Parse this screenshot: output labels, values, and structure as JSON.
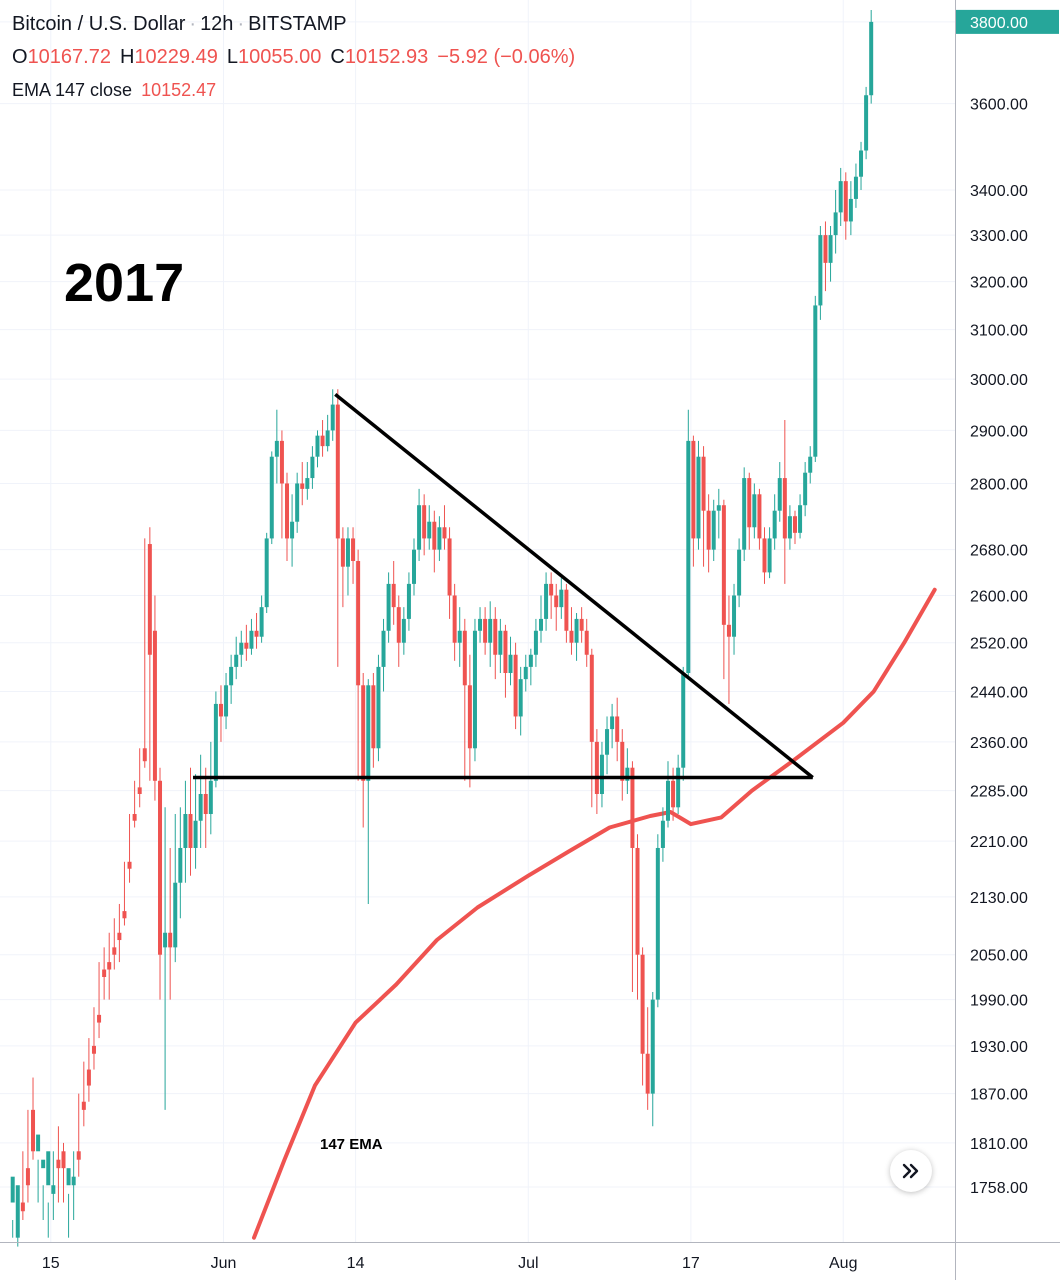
{
  "legend": {
    "symbol": "Bitcoin / U.S. Dollar",
    "interval": "12h",
    "exchange": "BITSTAMP",
    "o_label": "O",
    "o_value": "10167.72",
    "h_label": "H",
    "h_value": "10229.49",
    "l_label": "L",
    "l_value": "10055.00",
    "c_label": "C",
    "c_value": "10152.93",
    "change": "−5.92 (−0.06%)",
    "ema_label": "EMA 147 close",
    "ema_value": "10152.47"
  },
  "annotations": {
    "year": "2017",
    "ema_tag": "147 EMA"
  },
  "colors": {
    "up": "#26a69a",
    "down": "#ef5350",
    "ema": "#ef5350",
    "grid": "#f0f3fa",
    "trendline": "#000000",
    "axis_text": "#131722"
  },
  "icons": {
    "scroll_button": "double-chevron-right-icon"
  },
  "chart_data": {
    "type": "candlestick",
    "log_scale": true,
    "grid": true,
    "y_axis_position": "right",
    "y_ticks": [
      "3800.00",
      "3600.00",
      "3400.00",
      "3300.00",
      "3200.00",
      "3100.00",
      "3000.00",
      "2900.00",
      "2800.00",
      "2680.00",
      "2600.00",
      "2520.00",
      "2440.00",
      "2360.00",
      "2285.00",
      "2210.00",
      "2130.00",
      "2050.00",
      "1990.00",
      "1930.00",
      "1870.00",
      "1810.00",
      "1758.00"
    ],
    "ylim": [
      1720,
      3830
    ],
    "x_ticks": [
      {
        "label": "15",
        "date": "2017-05-15"
      },
      {
        "label": "Jun",
        "date": "2017-06-01"
      },
      {
        "label": "14",
        "date": "2017-06-14"
      },
      {
        "label": "Jul",
        "date": "2017-07-01"
      },
      {
        "label": "17",
        "date": "2017-07-17"
      },
      {
        "label": "Aug",
        "date": "2017-08-01"
      }
    ],
    "xlim": [
      "2017-05-10",
      "2017-08-12"
    ],
    "last_price": "3800.00",
    "series": [
      {
        "name": "147 EMA",
        "type": "line",
        "points": [
          [
            "2017-06-04",
            1700
          ],
          [
            "2017-06-07",
            1790
          ],
          [
            "2017-06-10",
            1880
          ],
          [
            "2017-06-14",
            1960
          ],
          [
            "2017-06-18",
            2010
          ],
          [
            "2017-06-22",
            2070
          ],
          [
            "2017-06-26",
            2115
          ],
          [
            "2017-07-01",
            2160
          ],
          [
            "2017-07-05",
            2195
          ],
          [
            "2017-07-09",
            2230
          ],
          [
            "2017-07-13",
            2247
          ],
          [
            "2017-07-15",
            2253
          ],
          [
            "2017-07-17",
            2235
          ],
          [
            "2017-07-20",
            2245
          ],
          [
            "2017-07-23",
            2285
          ],
          [
            "2017-07-27",
            2330
          ],
          [
            "2017-08-01",
            2390
          ],
          [
            "2017-08-04",
            2440
          ],
          [
            "2017-08-07",
            2520
          ],
          [
            "2017-08-10",
            2610
          ]
        ]
      },
      {
        "name": "",
        "type": "trendline",
        "points": [
          [
            "2017-06-12",
            2970
          ],
          [
            "2017-07-29",
            2305
          ]
        ]
      },
      {
        "name": "",
        "type": "horizontal-line",
        "points": [
          [
            "2017-05-29",
            2305
          ],
          [
            "2017-07-29",
            2305
          ]
        ]
      }
    ],
    "candles": [
      [
        "2017-05-11",
        1740,
        1770,
        1720,
        1700
      ],
      [
        "2017-05-11",
        1700,
        1760,
        1740,
        1690
      ],
      [
        "2017-05-12",
        1740,
        1730,
        1800,
        1720
      ],
      [
        "2017-05-12",
        1780,
        1760,
        1850,
        1740
      ],
      [
        "2017-05-13",
        1850,
        1800,
        1890,
        1790
      ],
      [
        "2017-05-13",
        1800,
        1820,
        1790,
        1740
      ],
      [
        "2017-05-14",
        1780,
        1790,
        1760,
        1720
      ],
      [
        "2017-05-14",
        1760,
        1800,
        1740,
        1700
      ],
      [
        "2017-05-15",
        1750,
        1760,
        1800,
        1720
      ],
      [
        "2017-05-15",
        1790,
        1780,
        1830,
        1740
      ],
      [
        "2017-05-16",
        1800,
        1780,
        1810,
        1740
      ],
      [
        "2017-05-16",
        1760,
        1780,
        1750,
        1700
      ],
      [
        "2017-05-17",
        1760,
        1770,
        1800,
        1720
      ],
      [
        "2017-05-17",
        1800,
        1790,
        1870,
        1770
      ],
      [
        "2017-05-18",
        1860,
        1850,
        1910,
        1830
      ],
      [
        "2017-05-18",
        1900,
        1880,
        1940,
        1860
      ],
      [
        "2017-05-19",
        1930,
        1920,
        1980,
        1900
      ],
      [
        "2017-05-19",
        1970,
        1960,
        2040,
        1940
      ],
      [
        "2017-05-20",
        2030,
        2020,
        2060,
        1990
      ],
      [
        "2017-05-20",
        2040,
        2030,
        2080,
        1990
      ],
      [
        "2017-05-21",
        2060,
        2050,
        2100,
        2030
      ],
      [
        "2017-05-21",
        2080,
        2070,
        2120,
        2040
      ],
      [
        "2017-05-22",
        2110,
        2100,
        2180,
        2090
      ],
      [
        "2017-05-22",
        2180,
        2170,
        2250,
        2150
      ],
      [
        "2017-05-23",
        2250,
        2240,
        2300,
        2230
      ],
      [
        "2017-05-23",
        2290,
        2280,
        2350,
        2260
      ],
      [
        "2017-05-24",
        2350,
        2330,
        2700,
        2320
      ],
      [
        "2017-05-24",
        2690,
        2500,
        2720,
        2300
      ],
      [
        "2017-05-25",
        2540,
        2300,
        2600,
        2270
      ],
      [
        "2017-05-25",
        2300,
        2050,
        2320,
        1990
      ],
      [
        "2017-05-26",
        2060,
        2080,
        2260,
        1850
      ],
      [
        "2017-05-26",
        2080,
        2060,
        2200,
        1990
      ],
      [
        "2017-05-27",
        2060,
        2150,
        2250,
        2040
      ],
      [
        "2017-05-27",
        2150,
        2200,
        2260,
        2100
      ],
      [
        "2017-05-28",
        2200,
        2250,
        2300,
        2150
      ],
      [
        "2017-05-28",
        2250,
        2200,
        2320,
        2160
      ],
      [
        "2017-05-29",
        2200,
        2240,
        2310,
        2170
      ],
      [
        "2017-05-29",
        2240,
        2280,
        2340,
        2200
      ],
      [
        "2017-05-30",
        2280,
        2250,
        2320,
        2200
      ],
      [
        "2017-05-30",
        2250,
        2300,
        2360,
        2220
      ],
      [
        "2017-05-31",
        2300,
        2420,
        2440,
        2290
      ],
      [
        "2017-05-31",
        2420,
        2400,
        2450,
        2360
      ],
      [
        "2017-06-01",
        2400,
        2450,
        2470,
        2380
      ],
      [
        "2017-06-01",
        2450,
        2480,
        2500,
        2420
      ],
      [
        "2017-06-02",
        2480,
        2500,
        2530,
        2460
      ],
      [
        "2017-06-02",
        2500,
        2520,
        2540,
        2480
      ],
      [
        "2017-06-03",
        2520,
        2510,
        2550,
        2490
      ],
      [
        "2017-06-03",
        2510,
        2540,
        2560,
        2500
      ],
      [
        "2017-06-04",
        2540,
        2530,
        2570,
        2510
      ],
      [
        "2017-06-04",
        2530,
        2580,
        2600,
        2520
      ],
      [
        "2017-06-05",
        2580,
        2700,
        2710,
        2570
      ],
      [
        "2017-06-05",
        2700,
        2850,
        2860,
        2690
      ],
      [
        "2017-06-06",
        2850,
        2880,
        2940,
        2800
      ],
      [
        "2017-06-06",
        2880,
        2800,
        2900,
        2700
      ],
      [
        "2017-06-07",
        2800,
        2700,
        2820,
        2660
      ],
      [
        "2017-06-07",
        2700,
        2730,
        2780,
        2650
      ],
      [
        "2017-06-08",
        2730,
        2800,
        2820,
        2710
      ],
      [
        "2017-06-08",
        2800,
        2790,
        2840,
        2760
      ],
      [
        "2017-06-09",
        2790,
        2810,
        2840,
        2770
      ],
      [
        "2017-06-09",
        2810,
        2850,
        2870,
        2790
      ],
      [
        "2017-06-10",
        2850,
        2890,
        2900,
        2830
      ],
      [
        "2017-06-10",
        2890,
        2870,
        2920,
        2850
      ],
      [
        "2017-06-11",
        2870,
        2900,
        2930,
        2860
      ],
      [
        "2017-06-11",
        2900,
        2950,
        2980,
        2880
      ],
      [
        "2017-06-12",
        2950,
        2700,
        2980,
        2480
      ],
      [
        "2017-06-12",
        2700,
        2650,
        2720,
        2580
      ],
      [
        "2017-06-13",
        2650,
        2700,
        2720,
        2600
      ],
      [
        "2017-06-13",
        2700,
        2660,
        2720,
        2620
      ],
      [
        "2017-06-14",
        2660,
        2450,
        2680,
        2300
      ],
      [
        "2017-06-14",
        2450,
        2300,
        2470,
        2230
      ],
      [
        "2017-06-15",
        2300,
        2450,
        2460,
        2120
      ],
      [
        "2017-06-15",
        2450,
        2350,
        2470,
        2320
      ],
      [
        "2017-06-16",
        2350,
        2480,
        2500,
        2330
      ],
      [
        "2017-06-16",
        2480,
        2540,
        2560,
        2440
      ],
      [
        "2017-06-17",
        2540,
        2620,
        2640,
        2520
      ],
      [
        "2017-06-17",
        2620,
        2580,
        2660,
        2550
      ],
      [
        "2017-06-18",
        2580,
        2520,
        2600,
        2480
      ],
      [
        "2017-06-18",
        2520,
        2560,
        2580,
        2500
      ],
      [
        "2017-06-19",
        2560,
        2620,
        2640,
        2540
      ],
      [
        "2017-06-19",
        2620,
        2680,
        2700,
        2600
      ],
      [
        "2017-06-20",
        2680,
        2760,
        2790,
        2660
      ],
      [
        "2017-06-20",
        2760,
        2700,
        2780,
        2670
      ],
      [
        "2017-06-21",
        2700,
        2730,
        2760,
        2680
      ],
      [
        "2017-06-21",
        2730,
        2680,
        2750,
        2640
      ],
      [
        "2017-06-22",
        2680,
        2720,
        2740,
        2660
      ],
      [
        "2017-06-22",
        2720,
        2700,
        2760,
        2680
      ],
      [
        "2017-06-23",
        2700,
        2600,
        2720,
        2560
      ],
      [
        "2017-06-23",
        2600,
        2520,
        2620,
        2490
      ],
      [
        "2017-06-24",
        2520,
        2540,
        2580,
        2480
      ],
      [
        "2017-06-24",
        2540,
        2450,
        2560,
        2300
      ],
      [
        "2017-06-25",
        2450,
        2350,
        2500,
        2290
      ],
      [
        "2017-06-25",
        2350,
        2540,
        2560,
        2330
      ],
      [
        "2017-06-26",
        2540,
        2560,
        2580,
        2520
      ],
      [
        "2017-06-26",
        2560,
        2520,
        2580,
        2500
      ],
      [
        "2017-06-27",
        2520,
        2560,
        2590,
        2480
      ],
      [
        "2017-06-27",
        2560,
        2500,
        2580,
        2460
      ],
      [
        "2017-06-28",
        2500,
        2540,
        2560,
        2470
      ],
      [
        "2017-06-28",
        2540,
        2470,
        2550,
        2430
      ],
      [
        "2017-06-29",
        2470,
        2500,
        2530,
        2450
      ],
      [
        "2017-06-29",
        2500,
        2400,
        2520,
        2380
      ],
      [
        "2017-06-30",
        2400,
        2460,
        2480,
        2370
      ],
      [
        "2017-06-30",
        2460,
        2480,
        2500,
        2440
      ],
      [
        "2017-07-01",
        2480,
        2500,
        2510,
        2450
      ],
      [
        "2017-07-01",
        2500,
        2540,
        2560,
        2480
      ],
      [
        "2017-07-02",
        2540,
        2560,
        2600,
        2520
      ],
      [
        "2017-07-02",
        2560,
        2620,
        2640,
        2540
      ],
      [
        "2017-07-03",
        2620,
        2600,
        2640,
        2560
      ],
      [
        "2017-07-03",
        2600,
        2580,
        2620,
        2540
      ],
      [
        "2017-07-04",
        2580,
        2610,
        2630,
        2560
      ],
      [
        "2017-07-04",
        2610,
        2540,
        2620,
        2520
      ],
      [
        "2017-07-05",
        2540,
        2520,
        2580,
        2500
      ],
      [
        "2017-07-05",
        2520,
        2560,
        2570,
        2490
      ],
      [
        "2017-07-06",
        2560,
        2540,
        2580,
        2520
      ],
      [
        "2017-07-06",
        2540,
        2500,
        2560,
        2480
      ],
      [
        "2017-07-07",
        2500,
        2360,
        2510,
        2260
      ],
      [
        "2017-07-07",
        2360,
        2280,
        2380,
        2250
      ],
      [
        "2017-07-08",
        2280,
        2340,
        2360,
        2260
      ],
      [
        "2017-07-08",
        2340,
        2380,
        2400,
        2310
      ],
      [
        "2017-07-09",
        2380,
        2400,
        2420,
        2350
      ],
      [
        "2017-07-09",
        2400,
        2360,
        2430,
        2330
      ],
      [
        "2017-07-10",
        2360,
        2300,
        2380,
        2270
      ],
      [
        "2017-07-10",
        2300,
        2320,
        2350,
        2280
      ],
      [
        "2017-07-11",
        2320,
        2200,
        2330,
        2000
      ],
      [
        "2017-07-11",
        2200,
        2050,
        2220,
        1990
      ],
      [
        "2017-07-12",
        2050,
        1920,
        2060,
        1880
      ],
      [
        "2017-07-12",
        1920,
        1870,
        1980,
        1850
      ],
      [
        "2017-07-13",
        1870,
        1990,
        2000,
        1830
      ],
      [
        "2017-07-13",
        1990,
        2200,
        2220,
        1980
      ],
      [
        "2017-07-14",
        2200,
        2240,
        2260,
        2180
      ],
      [
        "2017-07-14",
        2240,
        2300,
        2330,
        2230
      ],
      [
        "2017-07-15",
        2300,
        2260,
        2320,
        2240
      ],
      [
        "2017-07-15",
        2260,
        2320,
        2340,
        2250
      ],
      [
        "2017-07-16",
        2320,
        2470,
        2480,
        2300
      ],
      [
        "2017-07-16",
        2470,
        2880,
        2940,
        2460
      ],
      [
        "2017-07-17",
        2880,
        2700,
        2890,
        2650
      ],
      [
        "2017-07-17",
        2700,
        2850,
        2880,
        2680
      ],
      [
        "2017-07-18",
        2850,
        2750,
        2870,
        2650
      ],
      [
        "2017-07-18",
        2750,
        2680,
        2780,
        2640
      ],
      [
        "2017-07-19",
        2680,
        2750,
        2770,
        2660
      ],
      [
        "2017-07-19",
        2750,
        2760,
        2790,
        2700
      ],
      [
        "2017-07-20",
        2760,
        2550,
        2770,
        2460
      ],
      [
        "2017-07-20",
        2550,
        2530,
        2600,
        2420
      ],
      [
        "2017-07-21",
        2530,
        2600,
        2620,
        2500
      ],
      [
        "2017-07-21",
        2600,
        2680,
        2700,
        2580
      ],
      [
        "2017-07-22",
        2680,
        2810,
        2830,
        2660
      ],
      [
        "2017-07-22",
        2810,
        2720,
        2820,
        2680
      ],
      [
        "2017-07-23",
        2720,
        2780,
        2800,
        2700
      ],
      [
        "2017-07-23",
        2780,
        2700,
        2790,
        2680
      ],
      [
        "2017-07-24",
        2700,
        2640,
        2720,
        2620
      ],
      [
        "2017-07-24",
        2640,
        2700,
        2720,
        2630
      ],
      [
        "2017-07-25",
        2700,
        2750,
        2780,
        2680
      ],
      [
        "2017-07-25",
        2750,
        2810,
        2840,
        2730
      ],
      [
        "2017-07-26",
        2810,
        2700,
        2920,
        2620
      ],
      [
        "2017-07-26",
        2700,
        2740,
        2760,
        2680
      ],
      [
        "2017-07-27",
        2740,
        2710,
        2750,
        2690
      ],
      [
        "2017-07-27",
        2710,
        2760,
        2780,
        2700
      ],
      [
        "2017-07-28",
        2760,
        2820,
        2840,
        2740
      ],
      [
        "2017-07-28",
        2820,
        2850,
        2870,
        2800
      ],
      [
        "2017-07-29",
        2850,
        3150,
        3170,
        2840
      ],
      [
        "2017-07-29",
        3150,
        3300,
        3320,
        3120
      ],
      [
        "2017-07-30",
        3300,
        3240,
        3330,
        3180
      ],
      [
        "2017-07-30",
        3240,
        3300,
        3320,
        3200
      ],
      [
        "2017-07-31",
        3300,
        3350,
        3400,
        3260
      ],
      [
        "2017-07-31",
        3350,
        3420,
        3450,
        3320
      ],
      [
        "2017-08-01",
        3420,
        3330,
        3440,
        3290
      ],
      [
        "2017-08-01",
        3330,
        3380,
        3420,
        3300
      ],
      [
        "2017-08-02",
        3380,
        3430,
        3460,
        3360
      ],
      [
        "2017-08-02",
        3430,
        3490,
        3510,
        3400
      ],
      [
        "2017-08-03",
        3490,
        3620,
        3640,
        3470
      ],
      [
        "2017-08-03",
        3620,
        3800,
        3830,
        3600
      ]
    ]
  }
}
